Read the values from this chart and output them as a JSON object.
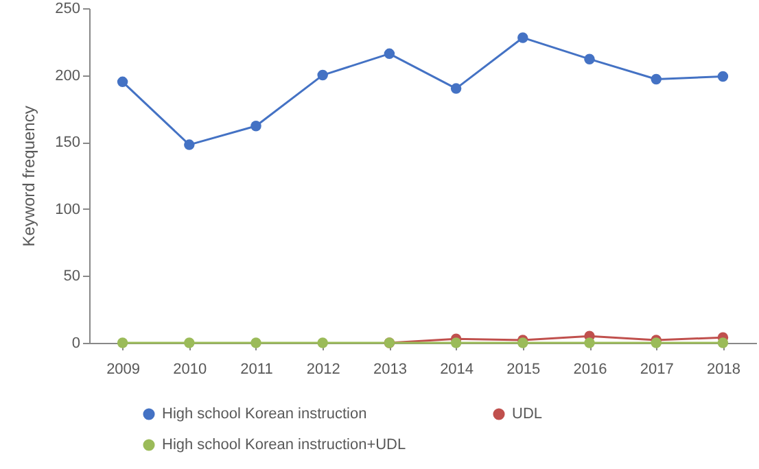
{
  "chart_data": {
    "type": "line",
    "ylabel": "Keyword frequency",
    "categories": [
      "2009",
      "2010",
      "2011",
      "2012",
      "2013",
      "2014",
      "2015",
      "2016",
      "2017",
      "2018"
    ],
    "series": [
      {
        "name": "High school Korean instruction",
        "color": "#4472c4",
        "values": [
          195,
          148,
          162,
          200,
          216,
          190,
          228,
          212,
          197,
          199
        ]
      },
      {
        "name": "UDL",
        "color": "#c0504d",
        "values": [
          null,
          null,
          null,
          null,
          0,
          3,
          2,
          5,
          2,
          4
        ]
      },
      {
        "name": "High school Korean instruction+UDL",
        "color": "#9bbb59",
        "values": [
          0,
          0,
          0,
          0,
          0,
          0,
          0,
          0,
          0,
          0
        ]
      }
    ],
    "ylim": [
      0,
      250
    ],
    "yticks": [
      0,
      50,
      100,
      150,
      200,
      250
    ],
    "grid": false,
    "legend": "bottom",
    "marker": "circle",
    "line_style": "solid"
  }
}
